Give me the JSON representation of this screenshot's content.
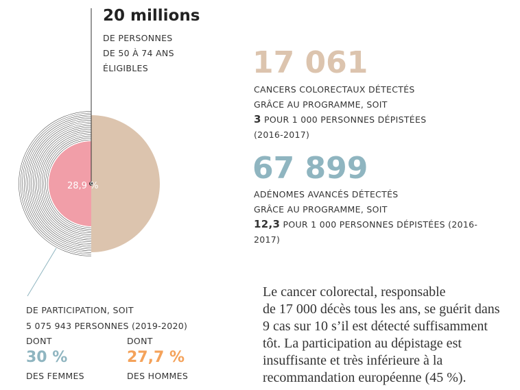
{
  "headline": {
    "value": "20 millions",
    "lines": [
      "DE PERSONNES",
      "DE 50 À 74 ANS",
      "ÉLIGIBLES"
    ]
  },
  "pie_label": "28,9 %",
  "participation": {
    "lines": [
      "DE PARTICIPATION, SOIT",
      "5 075 943 PERSONNES (2019-2020)"
    ],
    "women": {
      "prefix": "DONT",
      "value": "30 %",
      "label": "DES FEMMES"
    },
    "men": {
      "prefix": "DONT",
      "value": "27,7 %",
      "label": "DES HOMMES"
    }
  },
  "stats": [
    {
      "value": "17 061",
      "lines": [
        "CANCERS COLORECTAUX DÉTECTÉS",
        "GRÂCE AU PROGRAMME, SOIT"
      ],
      "highlight": "3",
      "highlight_rest": "POUR 1 000 PERSONNES DÉPISTÉES",
      "last": "(2016-2017)"
    },
    {
      "value": "67 899",
      "lines": [
        "ADÉNOMES AVANCÉS DÉTECTÉS",
        "GRÂCE AU PROGRAMME, SOIT"
      ],
      "highlight": "12,3",
      "highlight_rest": "POUR 1 000 PERSONNES DÉPISTÉES (2016-",
      "last": "2017)"
    }
  ],
  "paragraph": [
    "Le cancer colorectal, responsable",
    "de 17 000 décès tous les ans, se guérit dans",
    "9 cas sur 10 s’il est détecté suffisamment",
    "tôt. La participation au dépistage est",
    "insuffisante et très inférieure à la",
    "recommandation européenne (45 %)."
  ]
}
